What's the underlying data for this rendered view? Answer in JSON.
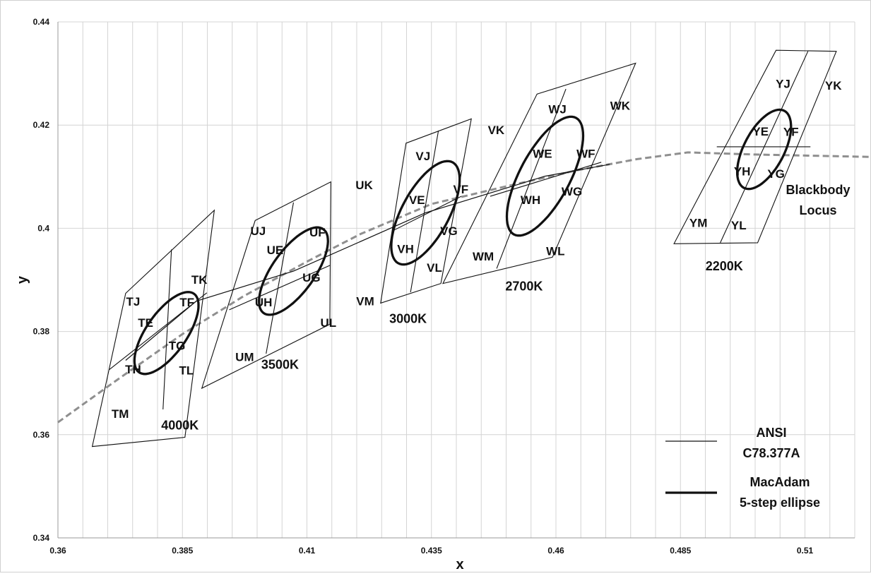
{
  "chart_data": {
    "type": "scatter",
    "xlabel": "x",
    "ylabel": "y",
    "xlim": [
      0.36,
      0.52
    ],
    "ylim": [
      0.34,
      0.44
    ],
    "xticks": [
      "0.36",
      "0.385",
      "0.41",
      "0.435",
      "0.46",
      "0.485",
      "0.51"
    ],
    "yticks": [
      "0.34",
      "0.36",
      "0.38",
      "0.4",
      "0.42",
      "0.44"
    ],
    "grid": true,
    "legend_placement": "bottom-right",
    "legend": [
      {
        "label_lines": [
          "ANSI",
          "C78.377A"
        ],
        "style": "thin"
      },
      {
        "label_lines": [
          "MacAdam",
          "5-step ellipse"
        ],
        "style": "thick"
      }
    ],
    "blackbody_locus": {
      "label_lines": [
        "Blackbody",
        "Locus"
      ],
      "points": [
        [
          0.36,
          0.3624
        ],
        [
          0.372,
          0.3707
        ],
        [
          0.385,
          0.3795
        ],
        [
          0.3972,
          0.3868
        ],
        [
          0.4103,
          0.3937
        ],
        [
          0.4208,
          0.3989
        ],
        [
          0.435,
          0.4047
        ],
        [
          0.4503,
          0.4082
        ],
        [
          0.4645,
          0.4113
        ],
        [
          0.4763,
          0.4134
        ],
        [
          0.4865,
          0.4147
        ],
        [
          0.5,
          0.4143
        ],
        [
          0.5245,
          0.4138
        ],
        [
          0.5305,
          0.4122
        ]
      ]
    },
    "ansi_locus": {
      "points": [
        [
          0.3736,
          0.3744
        ],
        [
          0.3878,
          0.3859
        ],
        [
          0.4073,
          0.3917
        ],
        [
          0.4338,
          0.403
        ],
        [
          0.4578,
          0.4101
        ],
        [
          0.4708,
          0.4124
        ]
      ]
    },
    "cct_groups": [
      {
        "label": "4000K",
        "label_at": [
          0.3845,
          0.3618
        ],
        "quad": [
          [
            0.3736,
            0.3874
          ],
          [
            0.3914,
            0.4035
          ],
          [
            0.3855,
            0.3595
          ],
          [
            0.3669,
            0.3577
          ]
        ],
        "splits": [
          [
            [
              0.3828,
              0.3959
            ],
            [
              0.3811,
              0.3649
            ]
          ],
          [
            [
              0.3703,
              0.3726
            ],
            [
              0.3899,
              0.3875
            ]
          ]
        ],
        "ellipse": {
          "cx": 0.3818,
          "cy": 0.3797,
          "a": 0.0094,
          "b": 0.004,
          "angle": 53.7
        },
        "bins": [
          {
            "label": "TJ",
            "at": [
              0.3751,
              0.3858
            ]
          },
          {
            "label": "TK",
            "at": [
              0.3884,
              0.3901
            ]
          },
          {
            "label": "TF",
            "at": [
              0.3859,
              0.3857
            ]
          },
          {
            "label": "TE",
            "at": [
              0.3776,
              0.3817
            ]
          },
          {
            "label": "TG",
            "at": [
              0.3839,
              0.3773
            ]
          },
          {
            "label": "TH",
            "at": [
              0.3751,
              0.3727
            ]
          },
          {
            "label": "TL",
            "at": [
              0.3858,
              0.3725
            ]
          },
          {
            "label": "TM",
            "at": [
              0.3725,
              0.3641
            ]
          }
        ]
      },
      {
        "label": "3500K",
        "label_at": [
          0.4046,
          0.3736
        ],
        "quad": [
          [
            0.3996,
            0.4015
          ],
          [
            0.4148,
            0.409
          ],
          [
            0.4146,
            0.3814
          ],
          [
            0.3889,
            0.369
          ]
        ],
        "splits": [
          [
            [
              0.4073,
              0.405
            ],
            [
              0.4018,
              0.3757
            ]
          ],
          [
            [
              0.3944,
              0.3842
            ],
            [
              0.4146,
              0.3928
            ]
          ]
        ],
        "ellipse": {
          "cx": 0.4073,
          "cy": 0.3917,
          "a": 0.0101,
          "b": 0.0042,
          "angle": 53.2
        },
        "bins": [
          {
            "label": "UJ",
            "at": [
              0.4002,
              0.3995
            ]
          },
          {
            "label": "UK",
            "at": [
              0.4215,
              0.4084
            ]
          },
          {
            "label": "UE",
            "at": [
              0.4036,
              0.3958
            ]
          },
          {
            "label": "UF",
            "at": [
              0.4121,
              0.3992
            ]
          },
          {
            "label": "UG",
            "at": [
              0.4109,
              0.3905
            ]
          },
          {
            "label": "UH",
            "at": [
              0.4013,
              0.3857
            ]
          },
          {
            "label": "UL",
            "at": [
              0.4143,
              0.3817
            ]
          },
          {
            "label": "UM",
            "at": [
              0.3975,
              0.3751
            ]
          }
        ]
      },
      {
        "label": "3000K",
        "label_at": [
          0.4303,
          0.3825
        ],
        "quad": [
          [
            0.4299,
            0.4165
          ],
          [
            0.443,
            0.4212
          ],
          [
            0.4369,
            0.3893
          ],
          [
            0.4248,
            0.3855
          ]
        ],
        "splits": [
          [
            [
              0.4364,
              0.4189
            ],
            [
              0.4308,
              0.3876
            ]
          ],
          [
            [
              0.4272,
              0.3995
            ],
            [
              0.441,
              0.4062
            ]
          ]
        ],
        "ellipse": {
          "cx": 0.4338,
          "cy": 0.403,
          "a": 0.0112,
          "b": 0.0047,
          "angle": 60.5
        },
        "bins": [
          {
            "label": "VJ",
            "at": [
              0.4333,
              0.414
            ]
          },
          {
            "label": "VK",
            "at": [
              0.448,
              0.4191
            ]
          },
          {
            "label": "VE",
            "at": [
              0.4321,
              0.4055
            ]
          },
          {
            "label": "VF",
            "at": [
              0.4409,
              0.4076
            ]
          },
          {
            "label": "VG",
            "at": [
              0.4385,
              0.3995
            ]
          },
          {
            "label": "VH",
            "at": [
              0.4298,
              0.396
            ]
          },
          {
            "label": "VL",
            "at": [
              0.4356,
              0.3924
            ]
          },
          {
            "label": "VM",
            "at": [
              0.4217,
              0.3859
            ]
          }
        ]
      },
      {
        "label": "2700K",
        "label_at": [
          0.4536,
          0.3888
        ],
        "quad": [
          [
            0.4562,
            0.426
          ],
          [
            0.476,
            0.432
          ],
          [
            0.4593,
            0.3944
          ],
          [
            0.4373,
            0.3893
          ]
        ],
        "splits": [
          [
            [
              0.462,
              0.427
            ],
            [
              0.4481,
              0.3922
            ]
          ],
          [
            [
              0.4468,
              0.4062
            ],
            [
              0.4691,
              0.4128
            ]
          ]
        ],
        "ellipse": {
          "cx": 0.4578,
          "cy": 0.4101,
          "a": 0.0129,
          "b": 0.005,
          "angle": 60.8
        },
        "bins": [
          {
            "label": "WJ",
            "at": [
              0.4603,
              0.4231
            ]
          },
          {
            "label": "WK",
            "at": [
              0.4729,
              0.4238
            ]
          },
          {
            "label": "WE",
            "at": [
              0.4573,
              0.4145
            ]
          },
          {
            "label": "WF",
            "at": [
              0.466,
              0.4145
            ]
          },
          {
            "label": "WH",
            "at": [
              0.4549,
              0.4055
            ]
          },
          {
            "label": "WG",
            "at": [
              0.4632,
              0.4072
            ]
          },
          {
            "label": "WM",
            "at": [
              0.4454,
              0.3946
            ]
          },
          {
            "label": "WL",
            "at": [
              0.4599,
              0.3956
            ]
          }
        ]
      },
      {
        "label": "2200K",
        "label_at": [
          0.4938,
          0.3927
        ],
        "quad": [
          [
            0.5042,
            0.4345
          ],
          [
            0.5163,
            0.4343
          ],
          [
            0.5005,
            0.3972
          ],
          [
            0.4837,
            0.397
          ]
        ],
        "splits": [
          [
            [
              0.5106,
              0.4343
            ],
            [
              0.493,
              0.3972
            ]
          ],
          [
            [
              0.4923,
              0.4158
            ],
            [
              0.5111,
              0.4158
            ]
          ]
        ],
        "ellipse": {
          "cx": 0.5018,
          "cy": 0.4153,
          "a": 0.0085,
          "b": 0.004,
          "angle": 61.0
        },
        "bins": [
          {
            "label": "YJ",
            "at": [
              0.5056,
              0.428
            ]
          },
          {
            "label": "YK",
            "at": [
              0.5157,
              0.4277
            ]
          },
          {
            "label": "YE",
            "at": [
              0.5011,
              0.4188
            ]
          },
          {
            "label": "YF",
            "at": [
              0.5072,
              0.4187
            ]
          },
          {
            "label": "YH",
            "at": [
              0.4974,
              0.4111
            ]
          },
          {
            "label": "YG",
            "at": [
              0.5042,
              0.4106
            ]
          },
          {
            "label": "YM",
            "at": [
              0.4886,
              0.4011
            ]
          },
          {
            "label": "YL",
            "at": [
              0.4967,
              0.4006
            ]
          }
        ]
      }
    ]
  }
}
